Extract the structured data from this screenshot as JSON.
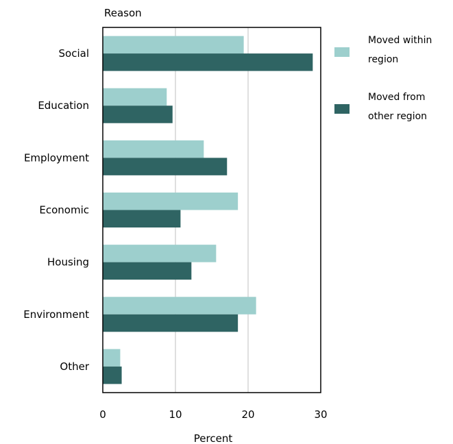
{
  "chart_data": {
    "type": "bar",
    "orientation": "horizontal",
    "ylabel": "Reason",
    "xlabel": "Percent",
    "xlim": [
      0,
      30
    ],
    "xticks": [
      0,
      10,
      20,
      30
    ],
    "grid": "vertical",
    "legend_position": "right",
    "categories": [
      "Social",
      "Education",
      "Employment",
      "Economic",
      "Housing",
      "Environment",
      "Other"
    ],
    "series": [
      {
        "name_lines": [
          "Moved within",
          "region"
        ],
        "color": "#9dcfcd",
        "values": [
          19.4,
          8.8,
          13.9,
          18.6,
          15.6,
          21.1,
          2.4
        ]
      },
      {
        "name_lines": [
          "Moved from",
          "other region"
        ],
        "color": "#2f6463",
        "values": [
          28.9,
          9.6,
          17.1,
          10.7,
          12.2,
          18.6,
          2.6
        ]
      }
    ]
  }
}
